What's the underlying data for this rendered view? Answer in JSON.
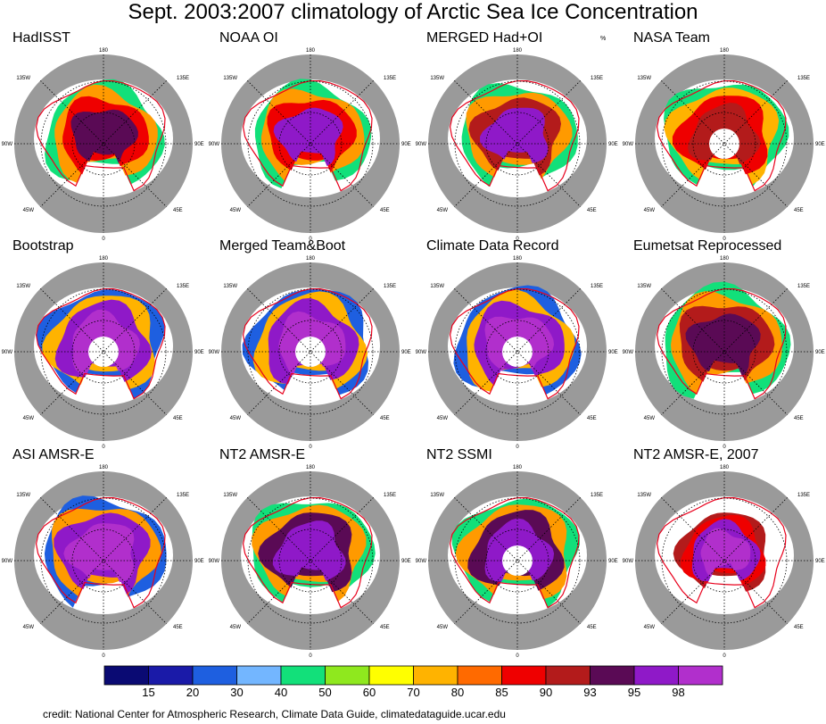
{
  "title": "Sept. 2003:2007 climatology of Arctic Sea Ice Concentration",
  "units": "%",
  "map_labels": {
    "north": "180",
    "south": "0",
    "west": "90W",
    "east": "90E",
    "ne": "135E",
    "nw": "135W",
    "se": "45E",
    "sw": "45W"
  },
  "colors": {
    "land": "#9a9a9a",
    "ocean": "#ffffff",
    "edge_line": "#e8001c",
    "grid": "#000000"
  },
  "panels": [
    {
      "title": "HadISST",
      "hole": false,
      "core": "#5a0a55",
      "mid": "#ef0000",
      "edge": "#ff9a00",
      "rim": "#12e07a",
      "spread": 1.0
    },
    {
      "title": "NOAA OI",
      "hole": false,
      "core": "#8f19c8",
      "mid": "#ef0000",
      "edge": "#ff9a00",
      "rim": "#12e07a",
      "spread": 1.0
    },
    {
      "title": "MERGED Had+OI",
      "hole": false,
      "core": "#8f19c8",
      "mid": "#b31b1b",
      "edge": "#ff9a00",
      "rim": "#12e07a",
      "spread": 1.0
    },
    {
      "title": "NASA Team",
      "hole": true,
      "core": "#b31b1b",
      "mid": "#ef0000",
      "edge": "#ffb300",
      "rim": "#12e07a",
      "spread": 1.05
    },
    {
      "title": "Bootstrap",
      "hole": true,
      "core": "#b12fcc",
      "mid": "#8f19c8",
      "edge": "#ffb300",
      "rim": "#1e5fe0",
      "spread": 1.05
    },
    {
      "title": "Merged Team&Boot",
      "hole": true,
      "core": "#b12fcc",
      "mid": "#8f19c8",
      "edge": "#ffb300",
      "rim": "#1e5fe0",
      "spread": 1.05
    },
    {
      "title": "Climate Data Record",
      "hole": true,
      "core": "#b12fcc",
      "mid": "#8f19c8",
      "edge": "#ffb300",
      "rim": "#1e5fe0",
      "spread": 1.05
    },
    {
      "title": "Eumetsat Reprocessed",
      "hole": false,
      "core": "#5a0a55",
      "mid": "#b31b1b",
      "edge": "#ff9a00",
      "rim": "#12e07a",
      "spread": 1.08
    },
    {
      "title": "ASI AMSR-E",
      "hole": false,
      "core": "#b12fcc",
      "mid": "#8f19c8",
      "edge": "#ff9a00",
      "rim": "#1e5fe0",
      "spread": 1.05
    },
    {
      "title": "NT2 AMSR-E",
      "hole": false,
      "core": "#8f19c8",
      "mid": "#5a0a55",
      "edge": "#ff9a00",
      "rim": "#12e07a",
      "spread": 1.05
    },
    {
      "title": "NT2 SSMI",
      "hole": true,
      "core": "#8f19c8",
      "mid": "#5a0a55",
      "edge": "#ff9a00",
      "rim": "#12e07a",
      "spread": 1.05
    },
    {
      "title": "NT2 AMSR-E, 2007",
      "hole": false,
      "core": "#b12fcc",
      "mid": "#8f19c8",
      "edge": "#ef0000",
      "rim": "#b31b1b",
      "spread": 0.78
    }
  ],
  "colorbar": {
    "colors": [
      "#0a0a73",
      "#1a1aa8",
      "#1e5fe0",
      "#73b6ff",
      "#12e07a",
      "#8fe81e",
      "#ffff00",
      "#ffb300",
      "#ff6a00",
      "#ef0000",
      "#b31b1b",
      "#5a0a55",
      "#8f19c8",
      "#b12fcc"
    ],
    "labels": [
      "15",
      "20",
      "30",
      "40",
      "50",
      "60",
      "70",
      "80",
      "85",
      "90",
      "93",
      "95",
      "98"
    ]
  },
  "credit": "credit: National Center for Atmospheric Research, Climate Data Guide, climatedataguide.ucar.edu"
}
